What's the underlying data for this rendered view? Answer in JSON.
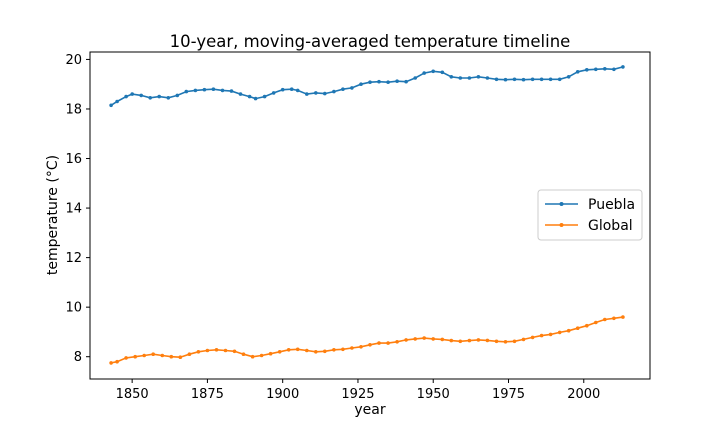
{
  "chart_data": {
    "type": "line",
    "title": "10-year, moving-averaged temperature timeline",
    "xlabel": "year",
    "ylabel": "temperature (°C)",
    "xlim": [
      1836,
      2022
    ],
    "ylim": [
      7.1,
      20.3
    ],
    "xticks": [
      1850,
      1875,
      1900,
      1925,
      1950,
      1975,
      2000
    ],
    "yticks": [
      8,
      10,
      12,
      14,
      16,
      18,
      20
    ],
    "grid": false,
    "legend_position": "center-right",
    "series": [
      {
        "name": "Puebla",
        "color": "#1f77b4",
        "marker": "point",
        "points": [
          [
            1843,
            18.15
          ],
          [
            1845,
            18.3
          ],
          [
            1848,
            18.5
          ],
          [
            1850,
            18.6
          ],
          [
            1853,
            18.55
          ],
          [
            1856,
            18.45
          ],
          [
            1859,
            18.5
          ],
          [
            1862,
            18.45
          ],
          [
            1865,
            18.55
          ],
          [
            1868,
            18.7
          ],
          [
            1871,
            18.75
          ],
          [
            1874,
            18.78
          ],
          [
            1877,
            18.8
          ],
          [
            1880,
            18.75
          ],
          [
            1883,
            18.72
          ],
          [
            1886,
            18.6
          ],
          [
            1889,
            18.5
          ],
          [
            1891,
            18.42
          ],
          [
            1894,
            18.5
          ],
          [
            1897,
            18.65
          ],
          [
            1900,
            18.78
          ],
          [
            1903,
            18.8
          ],
          [
            1905,
            18.75
          ],
          [
            1908,
            18.6
          ],
          [
            1911,
            18.65
          ],
          [
            1914,
            18.62
          ],
          [
            1917,
            18.7
          ],
          [
            1920,
            18.8
          ],
          [
            1923,
            18.85
          ],
          [
            1926,
            19.0
          ],
          [
            1929,
            19.08
          ],
          [
            1932,
            19.1
          ],
          [
            1935,
            19.08
          ],
          [
            1938,
            19.12
          ],
          [
            1941,
            19.1
          ],
          [
            1944,
            19.25
          ],
          [
            1947,
            19.45
          ],
          [
            1950,
            19.52
          ],
          [
            1953,
            19.48
          ],
          [
            1956,
            19.3
          ],
          [
            1959,
            19.25
          ],
          [
            1962,
            19.25
          ],
          [
            1965,
            19.3
          ],
          [
            1968,
            19.25
          ],
          [
            1971,
            19.2
          ],
          [
            1974,
            19.18
          ],
          [
            1977,
            19.2
          ],
          [
            1980,
            19.18
          ],
          [
            1983,
            19.2
          ],
          [
            1986,
            19.2
          ],
          [
            1989,
            19.2
          ],
          [
            1992,
            19.2
          ],
          [
            1995,
            19.3
          ],
          [
            1998,
            19.5
          ],
          [
            2001,
            19.58
          ],
          [
            2004,
            19.6
          ],
          [
            2007,
            19.62
          ],
          [
            2010,
            19.6
          ],
          [
            2013,
            19.7
          ]
        ]
      },
      {
        "name": "Global",
        "color": "#ff7f0e",
        "marker": "point",
        "points": [
          [
            1843,
            7.75
          ],
          [
            1845,
            7.8
          ],
          [
            1848,
            7.95
          ],
          [
            1851,
            8.0
          ],
          [
            1854,
            8.05
          ],
          [
            1857,
            8.1
          ],
          [
            1860,
            8.05
          ],
          [
            1863,
            8.0
          ],
          [
            1866,
            7.98
          ],
          [
            1869,
            8.1
          ],
          [
            1872,
            8.2
          ],
          [
            1875,
            8.25
          ],
          [
            1878,
            8.28
          ],
          [
            1881,
            8.25
          ],
          [
            1884,
            8.22
          ],
          [
            1887,
            8.1
          ],
          [
            1890,
            8.0
          ],
          [
            1893,
            8.05
          ],
          [
            1896,
            8.12
          ],
          [
            1899,
            8.2
          ],
          [
            1902,
            8.28
          ],
          [
            1905,
            8.3
          ],
          [
            1908,
            8.25
          ],
          [
            1911,
            8.2
          ],
          [
            1914,
            8.22
          ],
          [
            1917,
            8.28
          ],
          [
            1920,
            8.3
          ],
          [
            1923,
            8.35
          ],
          [
            1926,
            8.4
          ],
          [
            1929,
            8.48
          ],
          [
            1932,
            8.55
          ],
          [
            1935,
            8.55
          ],
          [
            1938,
            8.6
          ],
          [
            1941,
            8.68
          ],
          [
            1944,
            8.72
          ],
          [
            1947,
            8.75
          ],
          [
            1950,
            8.72
          ],
          [
            1953,
            8.7
          ],
          [
            1956,
            8.65
          ],
          [
            1959,
            8.62
          ],
          [
            1962,
            8.65
          ],
          [
            1965,
            8.68
          ],
          [
            1968,
            8.66
          ],
          [
            1971,
            8.62
          ],
          [
            1974,
            8.6
          ],
          [
            1977,
            8.62
          ],
          [
            1980,
            8.7
          ],
          [
            1983,
            8.78
          ],
          [
            1986,
            8.85
          ],
          [
            1989,
            8.9
          ],
          [
            1992,
            8.98
          ],
          [
            1995,
            9.05
          ],
          [
            1998,
            9.15
          ],
          [
            2001,
            9.25
          ],
          [
            2004,
            9.38
          ],
          [
            2007,
            9.5
          ],
          [
            2010,
            9.55
          ],
          [
            2013,
            9.6
          ]
        ]
      }
    ]
  }
}
